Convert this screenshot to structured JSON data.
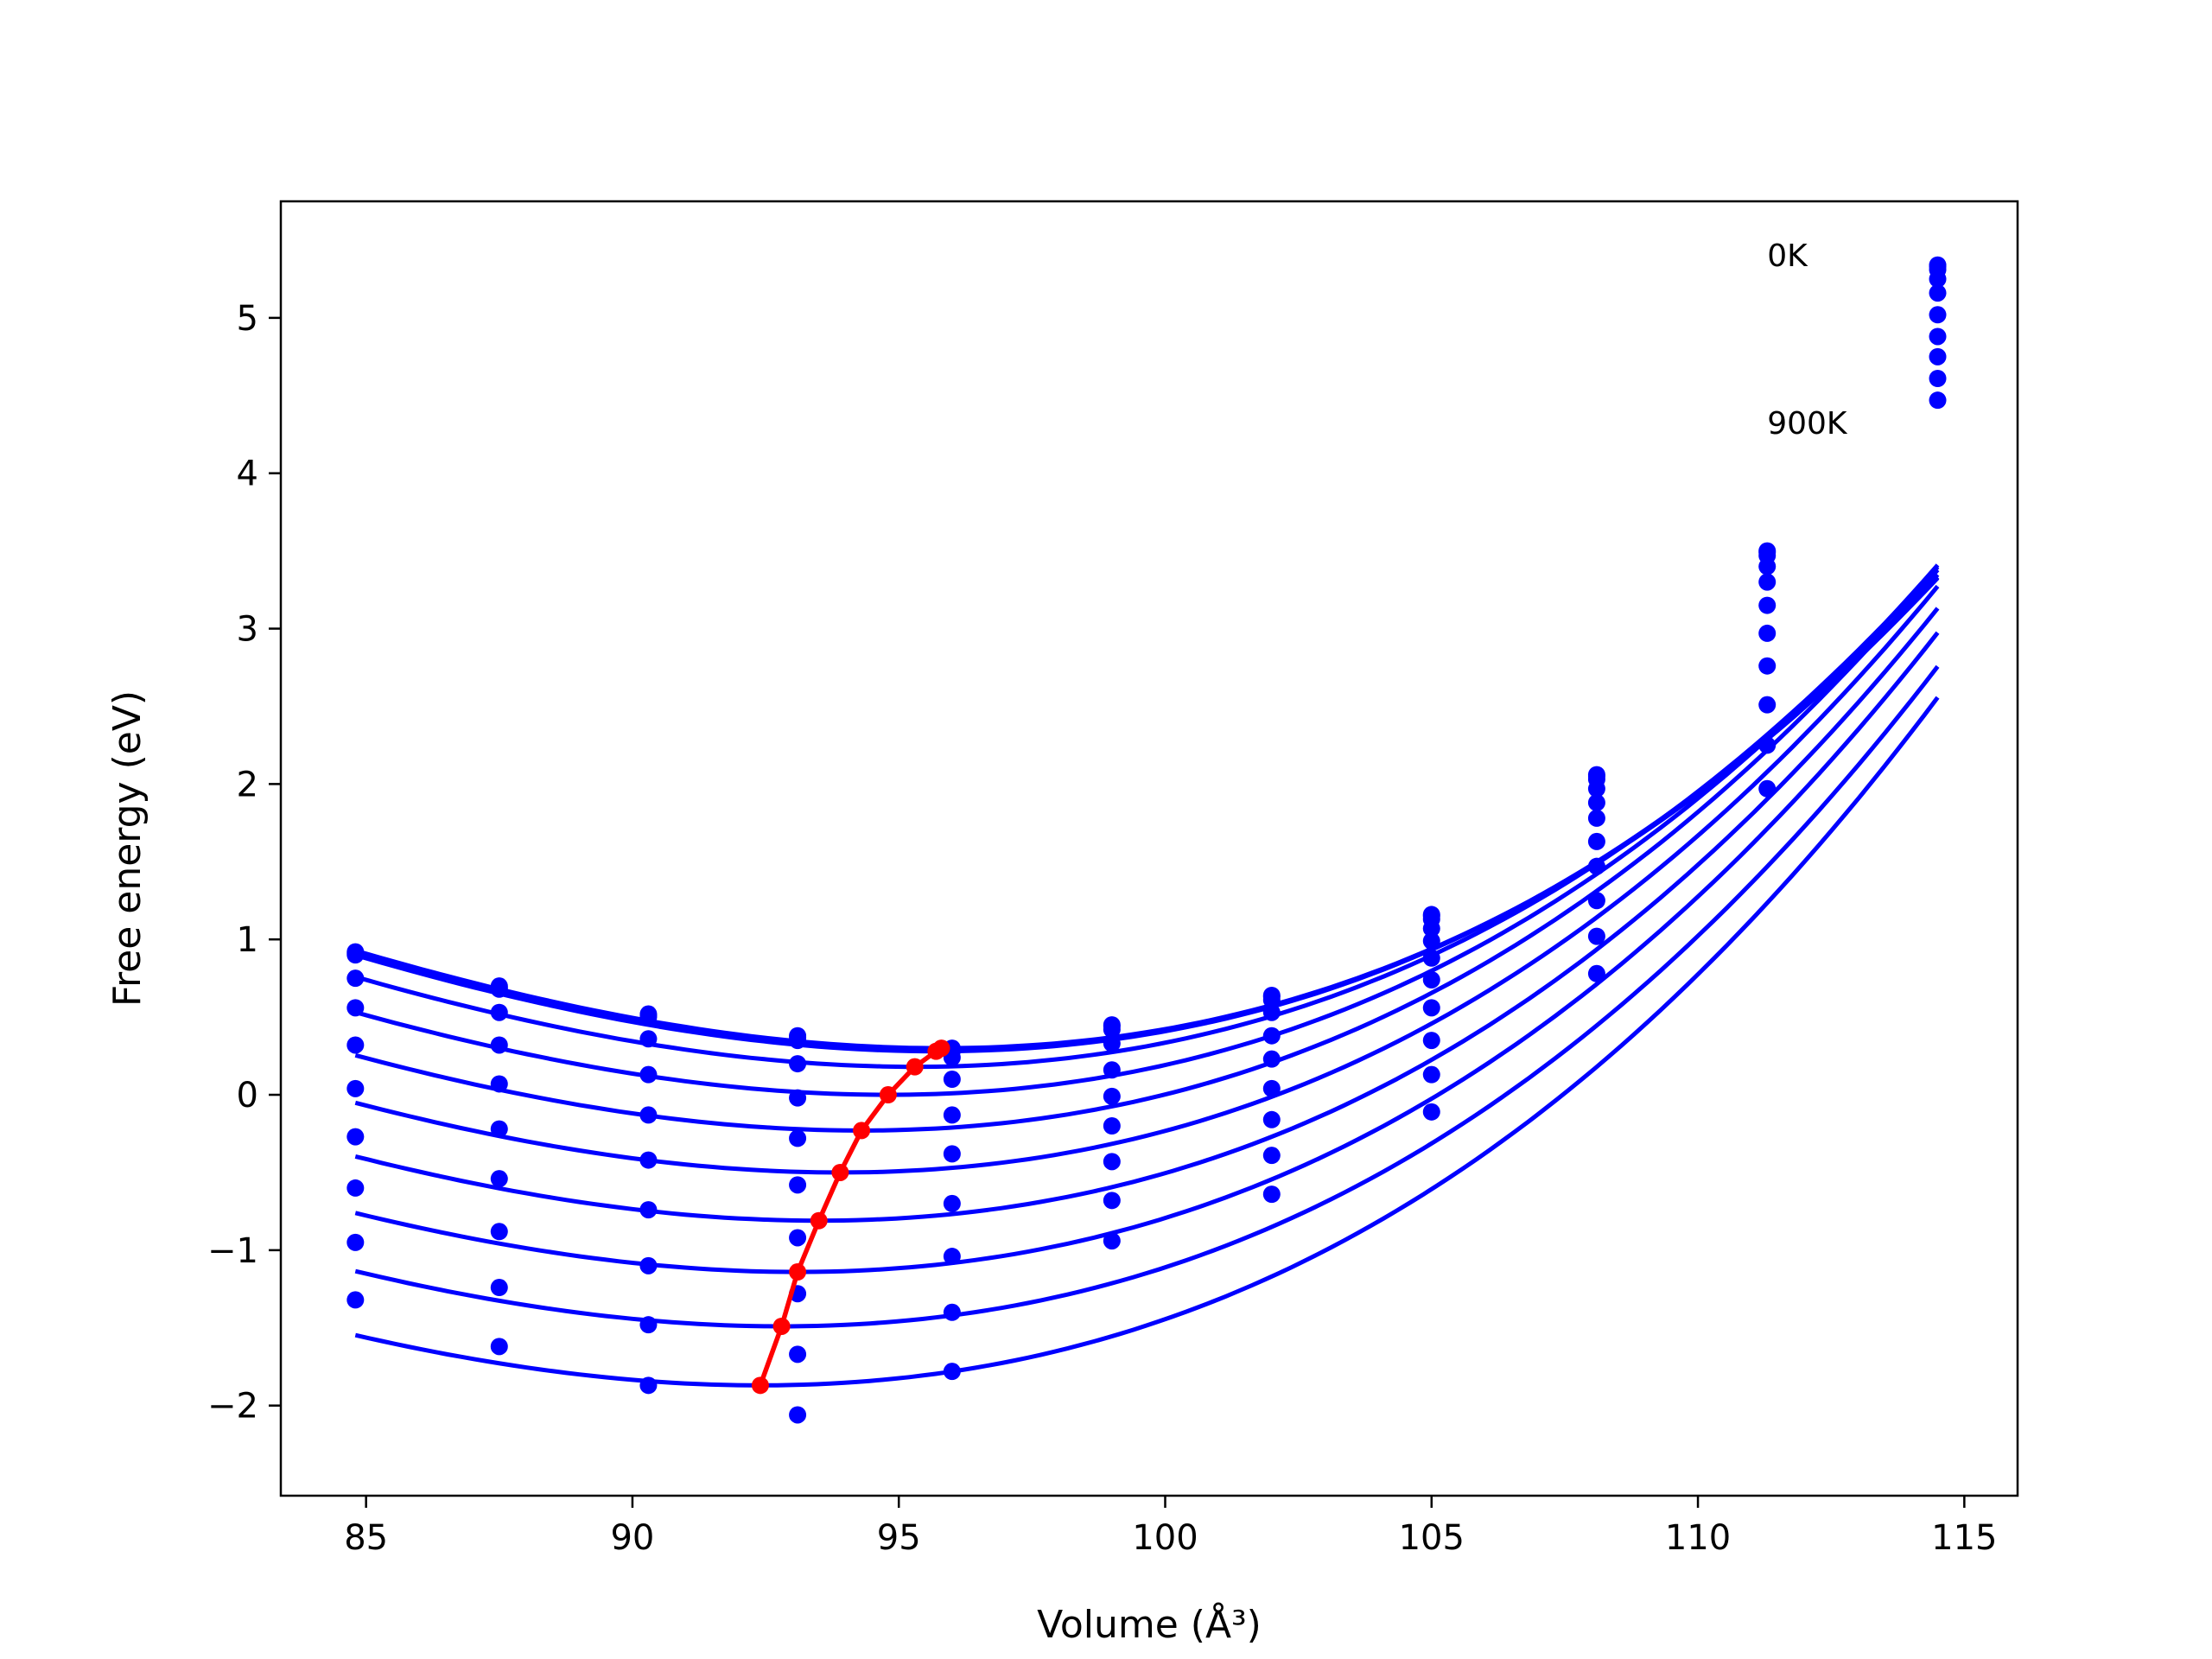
{
  "chart_data": {
    "type": "scatter",
    "title": "",
    "xlabel": "Volume (Å³)",
    "ylabel": "Free energy (eV)",
    "xlim": [
      83.4,
      116.0
    ],
    "ylim": [
      -2.58,
      5.75
    ],
    "xticks": [
      85,
      90,
      95,
      100,
      105,
      110,
      115
    ],
    "yticks": [
      -2,
      -1,
      0,
      1,
      2,
      3,
      4,
      5
    ],
    "grid": false,
    "legend": "none",
    "colors": {
      "fit": "#0000ff",
      "points": "#0000ff",
      "minima": "#ff0000"
    },
    "annotations": [
      {
        "text": "0K",
        "x": 111.3,
        "y": 5.4
      },
      {
        "text": "900K",
        "x": 111.3,
        "y": 4.32
      }
    ],
    "volumes": [
      84.8,
      87.5,
      90.3,
      93.1,
      96.0,
      99.0,
      102.0,
      105.0,
      108.1,
      111.3,
      114.5
    ],
    "curve_range": [
      84.8,
      114.5
    ],
    "series": [
      {
        "fit_coeffs": [
          0.3,
          95.8,
          0.00648,
          0.000117
        ],
        "values": [
          0.92,
          0.7,
          0.52,
          0.38,
          0.3,
          0.45,
          0.64,
          1.16,
          2.06,
          3.5,
          5.34
        ]
      },
      {
        "fit_coeffs": [
          0.295,
          95.8,
          0.00648,
          0.000117
        ],
        "values": [
          0.91,
          0.69,
          0.51,
          0.37,
          0.29,
          0.44,
          0.63,
          1.15,
          2.05,
          3.49,
          5.33
        ]
      },
      {
        "fit_coeffs": [
          0.28,
          95.7,
          0.00648,
          0.000117
        ],
        "values": [
          0.9,
          0.68,
          0.5,
          0.35,
          0.28,
          0.42,
          0.61,
          1.13,
          2.03,
          3.47,
          5.31
        ]
      },
      {
        "fit_coeffs": [
          0.18,
          95.3,
          0.00648,
          0.000117
        ],
        "values": [
          0.75,
          0.53,
          0.36,
          0.2,
          0.24,
          0.33,
          0.53,
          1.07,
          1.97,
          3.4,
          5.25
        ]
      },
      {
        "fit_coeffs": [
          0.0,
          94.8,
          0.00648,
          0.000117
        ],
        "values": [
          0.56,
          0.32,
          0.13,
          -0.02,
          0.1,
          0.16,
          0.38,
          0.99,
          1.88,
          3.3,
          5.16
        ]
      },
      {
        "fit_coeffs": [
          -0.23,
          94.3,
          0.00648,
          0.000117
        ],
        "values": [
          0.32,
          0.07,
          -0.13,
          -0.28,
          -0.13,
          -0.01,
          0.23,
          0.88,
          1.78,
          3.15,
          5.02
        ]
      },
      {
        "fit_coeffs": [
          -0.5,
          93.9,
          0.00648,
          0.000117
        ],
        "values": [
          0.04,
          -0.22,
          -0.42,
          -0.58,
          -0.38,
          -0.2,
          0.04,
          0.74,
          1.63,
          2.97,
          4.88
        ]
      },
      {
        "fit_coeffs": [
          -0.81,
          93.5,
          0.00648,
          0.000117
        ],
        "values": [
          -0.27,
          -0.54,
          -0.74,
          -0.92,
          -0.7,
          -0.43,
          -0.16,
          0.56,
          1.47,
          2.76,
          4.75
        ]
      },
      {
        "fit_coeffs": [
          -1.14,
          93.1,
          0.00648,
          0.000117
        ],
        "values": [
          -0.6,
          -0.88,
          -1.1,
          -1.28,
          -1.04,
          -0.68,
          -0.39,
          0.35,
          1.25,
          2.51,
          4.61
        ]
      },
      {
        "fit_coeffs": [
          -1.49,
          92.8,
          0.00648,
          0.000117
        ],
        "values": [
          -0.95,
          -1.24,
          -1.48,
          -1.67,
          -1.4,
          -0.94,
          -0.64,
          0.13,
          1.02,
          2.25,
          4.47
        ]
      },
      {
        "fit_coeffs": [
          -1.87,
          92.4,
          0.00648,
          0.000117
        ],
        "values": [
          -1.32,
          -1.62,
          -1.87,
          -2.06,
          -1.78,
          null,
          null,
          -0.11,
          0.78,
          1.97,
          null
        ]
      }
    ],
    "minima": {
      "x": [
        92.4,
        92.8,
        93.1,
        93.5,
        93.9,
        94.3,
        94.8,
        95.3,
        95.7,
        95.8
      ],
      "y": [
        -1.87,
        -1.49,
        -1.14,
        -0.81,
        -0.5,
        -0.23,
        0.0,
        0.18,
        0.28,
        0.3
      ]
    }
  }
}
